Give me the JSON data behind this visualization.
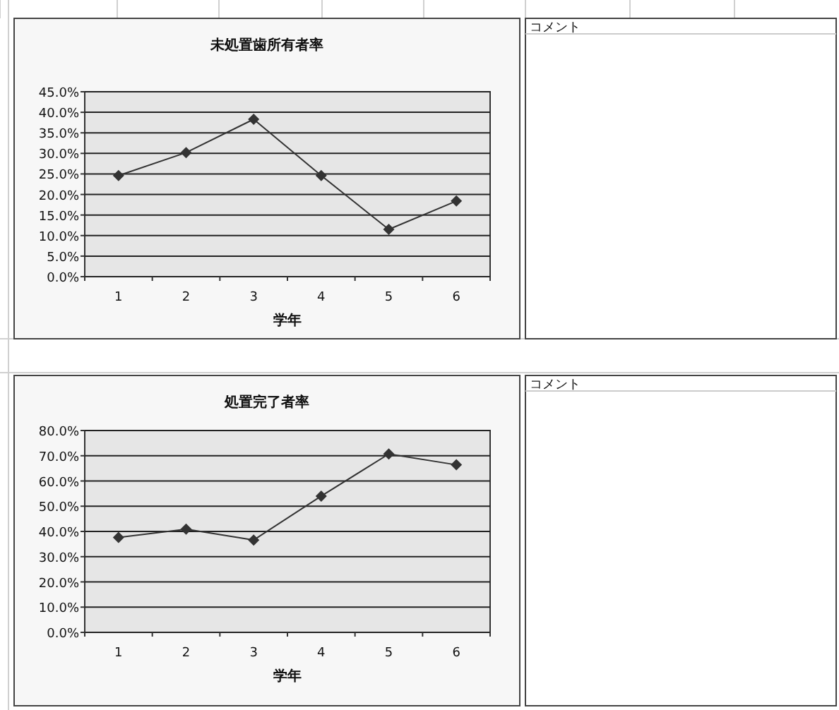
{
  "chart_data": [
    {
      "type": "line",
      "title": "未処置歯所有者率",
      "xlabel": "学年",
      "categories": [
        "1",
        "2",
        "3",
        "4",
        "5",
        "6"
      ],
      "series": [
        {
          "color": "#333333",
          "values": [
            24.6,
            30.2,
            38.3,
            24.6,
            11.5,
            18.4
          ]
        }
      ],
      "ylim": [
        0,
        45
      ],
      "yticks": [
        {
          "value": 0,
          "label": "0.0%"
        },
        {
          "value": 5,
          "label": "5.0%"
        },
        {
          "value": 10,
          "label": "10.0%"
        },
        {
          "value": 15,
          "label": "15.0%"
        },
        {
          "value": 20,
          "label": "20.0%"
        },
        {
          "value": 25,
          "label": "25.0%"
        },
        {
          "value": 30,
          "label": "30.0%"
        },
        {
          "value": 35,
          "label": "35.0%"
        },
        {
          "value": 40,
          "label": "40.0%"
        },
        {
          "value": 45,
          "label": "45.0%"
        }
      ],
      "grid": "y",
      "marker": "diamond",
      "line_style": "solid"
    },
    {
      "type": "other",
      "title": "コメント"
    },
    {
      "type": "line",
      "title": "処置完了者率",
      "xlabel": "学年",
      "categories": [
        "1",
        "2",
        "3",
        "4",
        "5",
        "6"
      ],
      "series": [
        {
          "color": "#333333",
          "values": [
            37.6,
            40.9,
            36.6,
            54.0,
            70.7,
            66.4
          ]
        }
      ],
      "ylim": [
        0,
        80
      ],
      "yticks": [
        {
          "value": 0,
          "label": "0.0%"
        },
        {
          "value": 10,
          "label": "10.0%"
        },
        {
          "value": 20,
          "label": "20.0%"
        },
        {
          "value": 30,
          "label": "30.0%"
        },
        {
          "value": 40,
          "label": "40.0%"
        },
        {
          "value": 50,
          "label": "50.0%"
        },
        {
          "value": 60,
          "label": "60.0%"
        },
        {
          "value": 70,
          "label": "70.0%"
        },
        {
          "value": 80,
          "label": "80.0%"
        }
      ],
      "grid": "y",
      "marker": "diamond",
      "line_style": "solid"
    },
    {
      "type": "other",
      "title": "コメント"
    }
  ]
}
